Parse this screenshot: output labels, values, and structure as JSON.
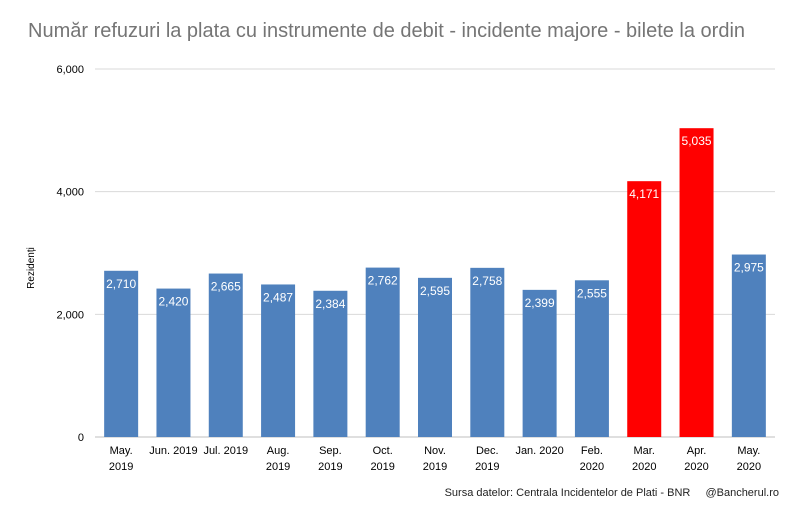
{
  "chart_data": {
    "type": "bar",
    "title": "Număr refuzuri la plata cu instrumente de debit - incidente majore - bilete la ordin",
    "ylabel": "Rezidenți",
    "xlabel": "",
    "ylim": [
      0,
      6000
    ],
    "yticks": [
      "0",
      "2,000",
      "4,000",
      "6,000"
    ],
    "ytick_values": [
      0,
      2000,
      4000,
      6000
    ],
    "grid": true,
    "legend": "none",
    "categories": [
      [
        "May.",
        "2019"
      ],
      [
        "Jun. 2019"
      ],
      [
        "Jul. 2019"
      ],
      [
        "Aug.",
        "2019"
      ],
      [
        "Sep.",
        "2019"
      ],
      [
        "Oct.",
        "2019"
      ],
      [
        "Nov.",
        "2019"
      ],
      [
        "Dec.",
        "2019"
      ],
      [
        "Jan. 2020"
      ],
      [
        "Feb.",
        "2020"
      ],
      [
        "Mar.",
        "2020"
      ],
      [
        "Apr.",
        "2020"
      ],
      [
        "May.",
        "2020"
      ]
    ],
    "values": [
      2710,
      2420,
      2665,
      2487,
      2384,
      2762,
      2595,
      2758,
      2399,
      2555,
      4171,
      5035,
      2975
    ],
    "value_labels": [
      "2,710",
      "2,420",
      "2,665",
      "2,487",
      "2,384",
      "2,762",
      "2,595",
      "2,758",
      "2,399",
      "2,555",
      "4,171",
      "5,035",
      "2,975"
    ],
    "highlighted": [
      false,
      false,
      false,
      false,
      false,
      false,
      false,
      false,
      false,
      false,
      true,
      true,
      false
    ],
    "colors": {
      "default": "#4f81bd",
      "highlight": "#ff0000",
      "grid": "#d9d9d9",
      "text": "#000000",
      "label": "#ffffff"
    }
  },
  "footer": {
    "source": "Sursa datelor: Centrala Incidentelor de Plati - BNR",
    "brand": "@Bancherul.ro"
  }
}
